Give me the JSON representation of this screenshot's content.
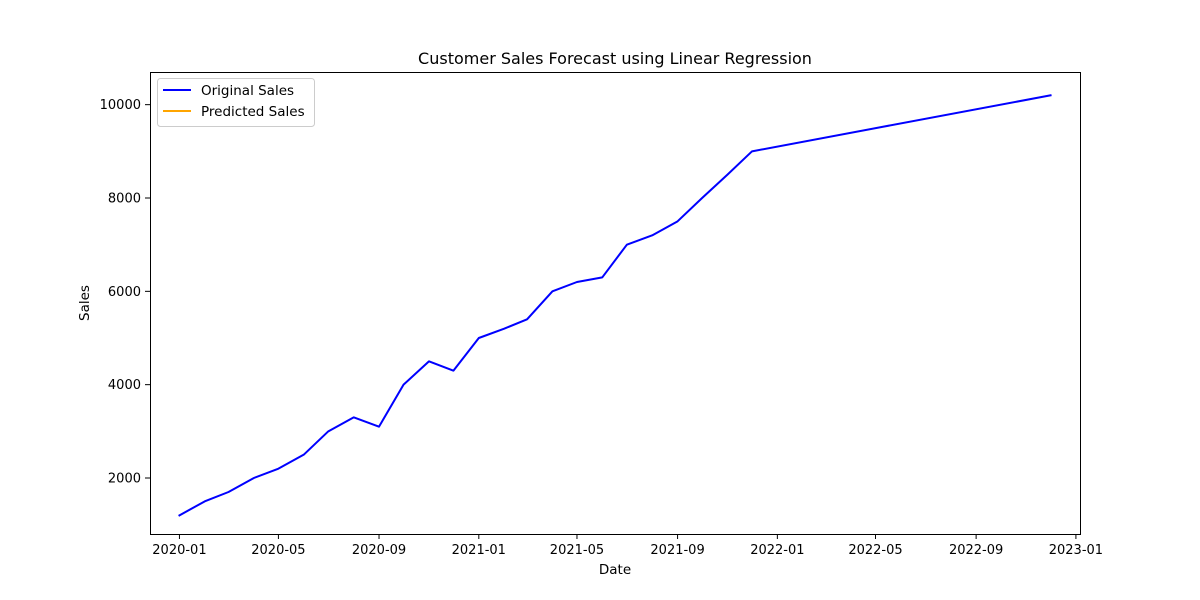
{
  "chart_data": {
    "type": "line",
    "title": "Customer Sales Forecast using Linear Regression",
    "xlabel": "Date",
    "ylabel": "Sales",
    "xlim": [
      "2019-11-26",
      "2023-01-06"
    ],
    "ylim": [
      800,
      10700
    ],
    "grid": false,
    "legend_position": "upper-left",
    "x_ticks": [
      "2020-01",
      "2020-05",
      "2020-09",
      "2021-01",
      "2021-05",
      "2021-09",
      "2022-01",
      "2022-05",
      "2022-09",
      "2023-01"
    ],
    "y_ticks": [
      2000,
      4000,
      6000,
      8000,
      10000
    ],
    "series": [
      {
        "name": "Original Sales",
        "color": "#0000ff",
        "x": [
          "2020-01-01",
          "2020-02-01",
          "2020-03-01",
          "2020-04-01",
          "2020-05-01",
          "2020-06-01",
          "2020-07-01",
          "2020-08-01",
          "2020-09-01",
          "2020-10-01",
          "2020-11-01",
          "2020-12-01",
          "2021-01-01",
          "2021-02-01",
          "2021-03-01",
          "2021-04-01",
          "2021-05-01",
          "2021-06-01",
          "2021-07-01",
          "2021-08-01",
          "2021-09-01",
          "2021-10-01",
          "2021-11-01",
          "2021-12-01",
          "2022-12-01"
        ],
        "values": [
          1200,
          1500,
          1700,
          2000,
          2200,
          2500,
          3000,
          3300,
          3100,
          4000,
          4500,
          4300,
          5000,
          5200,
          5400,
          6000,
          6200,
          6300,
          7000,
          7200,
          7500,
          8000,
          8500,
          9000,
          10200
        ]
      },
      {
        "name": "Predicted Sales",
        "color": "#ffa500",
        "x": [],
        "values": []
      }
    ]
  }
}
